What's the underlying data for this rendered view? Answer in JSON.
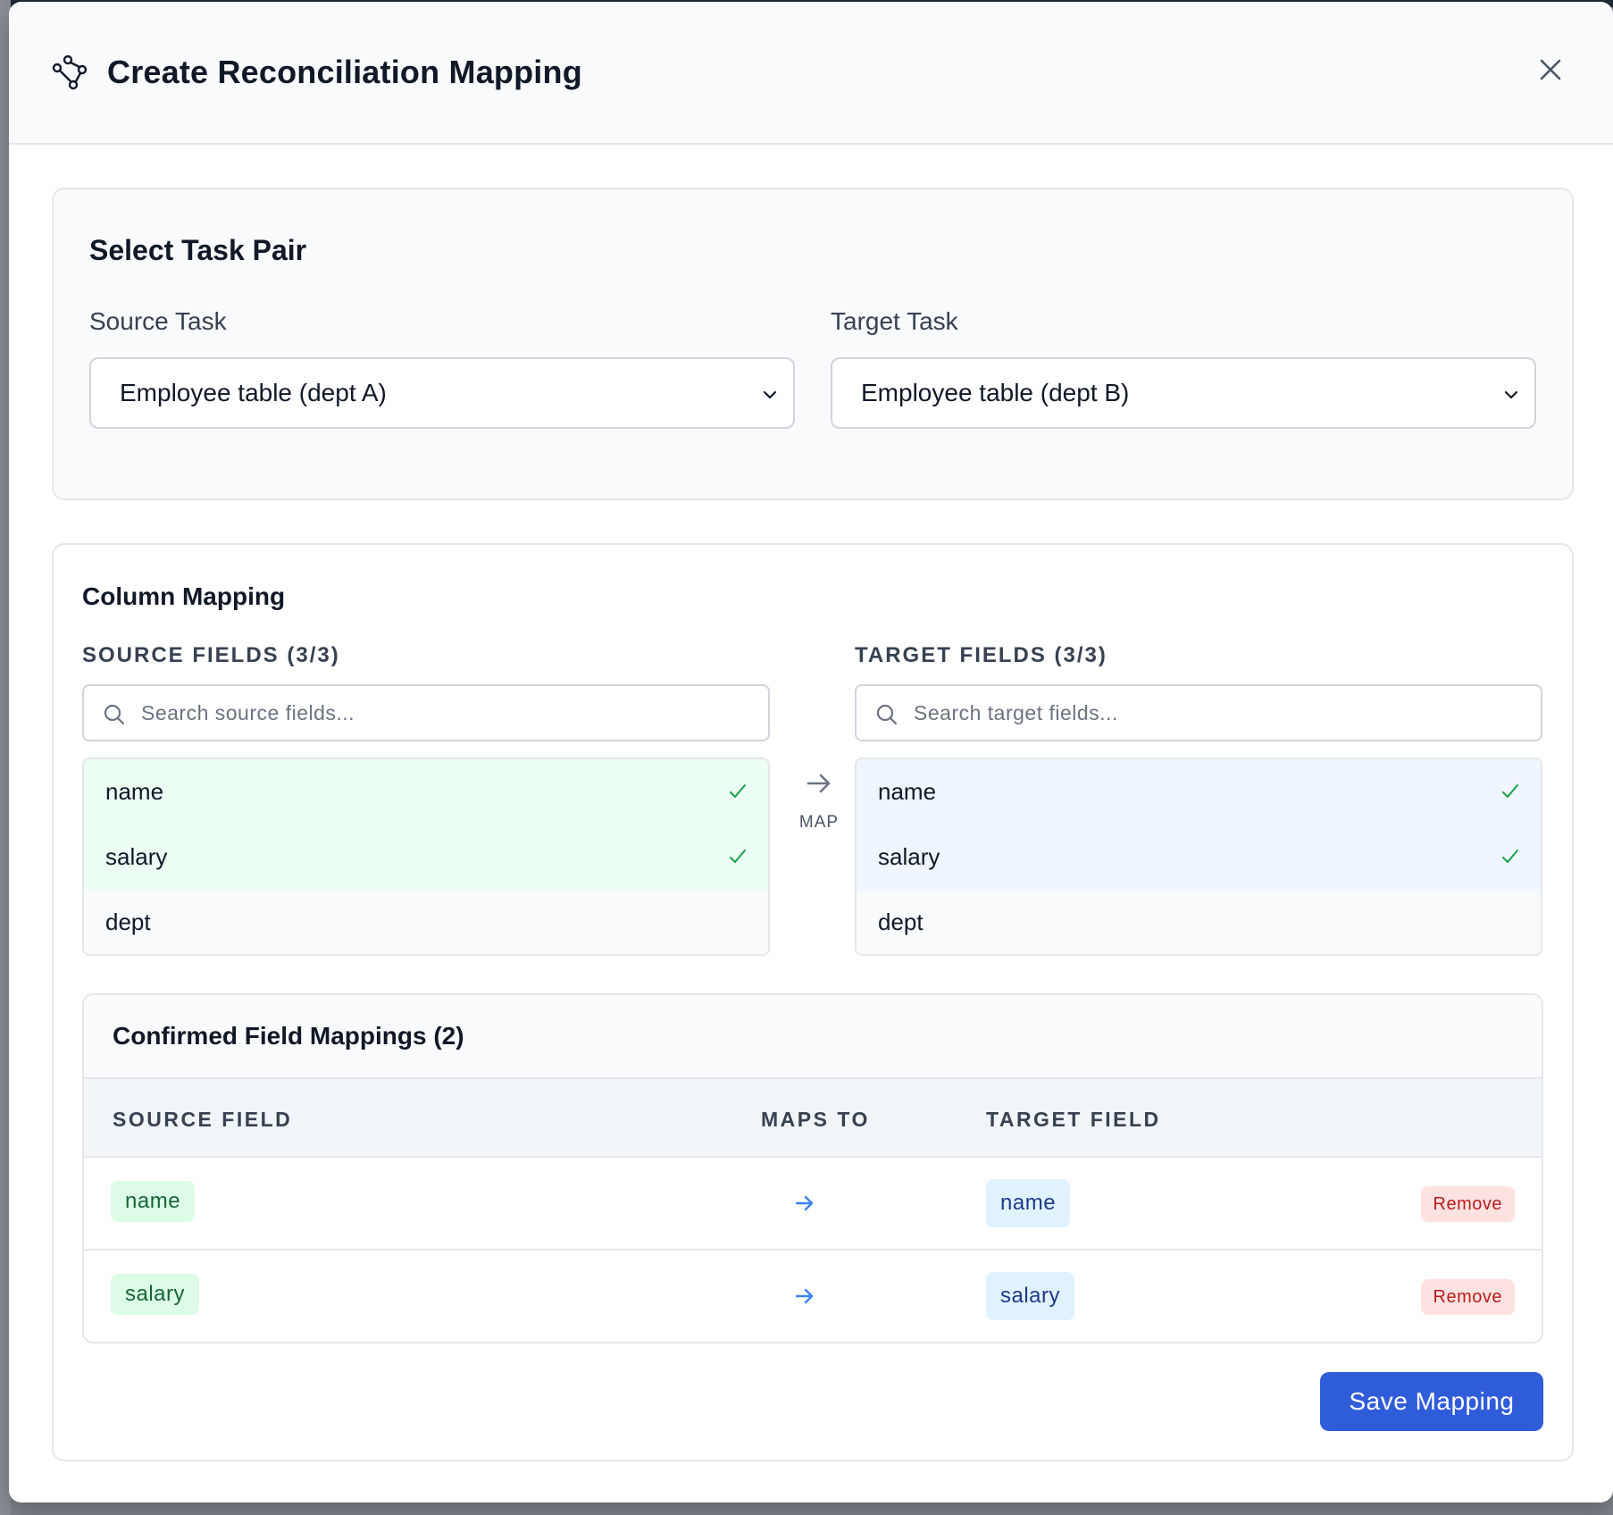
{
  "modal": {
    "title": "Create Reconciliation Mapping",
    "icon": "network-nodes-icon"
  },
  "task_pair": {
    "title": "Select Task Pair",
    "source_label": "Source Task",
    "source_value": "Employee table (dept A)",
    "target_label": "Target Task",
    "target_value": "Employee table (dept B)"
  },
  "column_mapping": {
    "title": "Column Mapping",
    "source_heading": "SOURCE FIELDS (3/3)",
    "target_heading": "TARGET FIELDS (3/3)",
    "source_search_placeholder": "Search source fields...",
    "target_search_placeholder": "Search target fields...",
    "map_label": "MAP",
    "source_fields": [
      {
        "name": "name",
        "mapped": true
      },
      {
        "name": "salary",
        "mapped": true
      },
      {
        "name": "dept",
        "mapped": false
      }
    ],
    "target_fields": [
      {
        "name": "name",
        "mapped": true
      },
      {
        "name": "salary",
        "mapped": true
      },
      {
        "name": "dept",
        "mapped": false
      }
    ]
  },
  "confirmed": {
    "title": "Confirmed Field Mappings (2)",
    "headers": {
      "source": "SOURCE FIELD",
      "maps_to": "MAPS TO",
      "target": "TARGET FIELD"
    },
    "rows": [
      {
        "source": "name",
        "target": "name",
        "action": "Remove"
      },
      {
        "source": "salary",
        "target": "salary",
        "action": "Remove"
      }
    ]
  },
  "save_label": "Save Mapping",
  "colors": {
    "primary": "#2f5cd9",
    "source_highlight": "#ecfdf3",
    "target_highlight": "#eff6ff",
    "check_green": "#16a34a",
    "arrow_blue": "#3b82f6",
    "remove_red": "#b91c1c"
  }
}
